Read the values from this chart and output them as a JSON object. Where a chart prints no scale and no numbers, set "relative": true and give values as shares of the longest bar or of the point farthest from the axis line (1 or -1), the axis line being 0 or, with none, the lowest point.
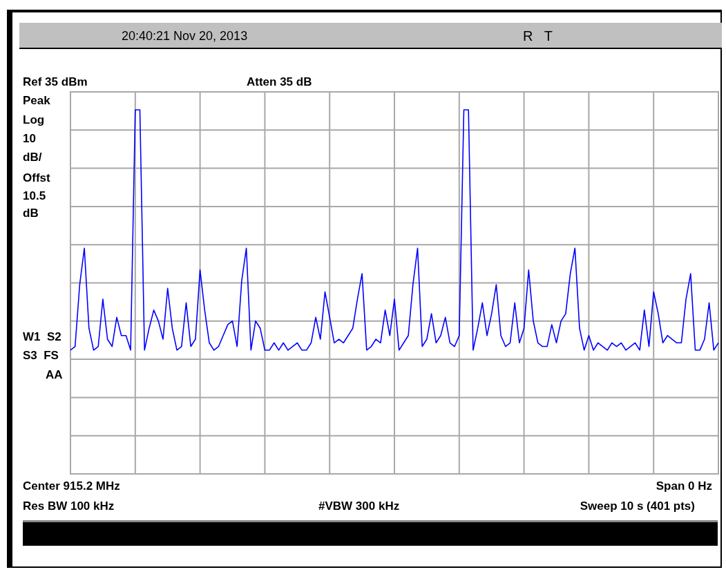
{
  "chart_data": {
    "type": "line",
    "relative": true,
    "grid": true,
    "legend": false,
    "marker": "none",
    "line_style": "solid",
    "annotations": [
      "20:40:21 Nov 20, 2013",
      "R   T",
      "Ref 35 dBm",
      "Atten 35 dB",
      "Peak",
      "Log",
      "10",
      "dB/",
      "Offst",
      "10.5",
      "dB",
      "W1  S2",
      "S3  FS",
      "AA",
      "Center 915.2 MHz",
      "Span 0 Hz",
      "Res BW 100 kHz",
      "#VBW 300 kHz",
      "Sweep 10 s (401 pts)"
    ],
    "categories": [
      null,
      null,
      null,
      null,
      null,
      null,
      null,
      null,
      null,
      null,
      null,
      null,
      null,
      null,
      null,
      null,
      null,
      null,
      null,
      null,
      null,
      null,
      null,
      null,
      null,
      null,
      null,
      null,
      null,
      null,
      null,
      null,
      null,
      null,
      null,
      null,
      null,
      null,
      null,
      null,
      null,
      null,
      null,
      null,
      null,
      null,
      null,
      null,
      null,
      null,
      null,
      null,
      null,
      null,
      null,
      null,
      null,
      null,
      null,
      null,
      null,
      null,
      null,
      null,
      null,
      null,
      null,
      null,
      null,
      null,
      null,
      null,
      null,
      null,
      null,
      null,
      null,
      null,
      null,
      null,
      null,
      null,
      null,
      null,
      null,
      null,
      null,
      null,
      null,
      null,
      null,
      null,
      null,
      null,
      null,
      null,
      null,
      null,
      null,
      null,
      null,
      null,
      null,
      null,
      null,
      null,
      null,
      null,
      null,
      null,
      null,
      null,
      null,
      null,
      null,
      null,
      null,
      null,
      null,
      null,
      null,
      null,
      null,
      null,
      null,
      null,
      null,
      null,
      null,
      null,
      null,
      null,
      null,
      null,
      null,
      null,
      null,
      null,
      null,
      null,
      null
    ],
    "series": [
      {
        "color": "#0000ff",
        "values": [
          0.34,
          0.35,
          0.52,
          0.62,
          0.4,
          0.34,
          0.35,
          0.48,
          0.37,
          0.35,
          0.43,
          0.38,
          0.38,
          0.34,
          1.0,
          1.0,
          0.34,
          0.4,
          0.45,
          0.42,
          0.37,
          0.51,
          0.4,
          0.34,
          0.35,
          0.47,
          0.35,
          0.37,
          0.56,
          0.45,
          0.36,
          0.34,
          0.35,
          0.38,
          0.41,
          0.42,
          0.35,
          0.53,
          0.62,
          0.34,
          0.42,
          0.4,
          0.34,
          0.34,
          0.36,
          0.34,
          0.36,
          0.34,
          0.35,
          0.36,
          0.34,
          0.34,
          0.36,
          0.43,
          0.37,
          0.5,
          0.43,
          0.36,
          0.37,
          0.36,
          0.38,
          0.4,
          0.48,
          0.55,
          0.34,
          0.35,
          0.37,
          0.36,
          0.45,
          0.38,
          0.48,
          0.34,
          0.36,
          0.38,
          0.52,
          0.62,
          0.35,
          0.37,
          0.44,
          0.36,
          0.38,
          0.43,
          0.36,
          0.35,
          0.38,
          1.0,
          1.0,
          0.34,
          0.4,
          0.47,
          0.38,
          0.44,
          0.52,
          0.38,
          0.35,
          0.36,
          0.47,
          0.36,
          0.4,
          0.56,
          0.42,
          0.36,
          0.35,
          0.35,
          0.41,
          0.36,
          0.42,
          0.44,
          0.55,
          0.62,
          0.4,
          0.34,
          0.38,
          0.34,
          0.36,
          0.35,
          0.34,
          0.36,
          0.35,
          0.36,
          0.34,
          0.35,
          0.36,
          0.34,
          0.45,
          0.35,
          0.5,
          0.44,
          0.36,
          0.38,
          0.37,
          0.36,
          0.36,
          0.48,
          0.55,
          0.34,
          0.34,
          0.37,
          0.47,
          0.34,
          0.36
        ]
      }
    ]
  }
}
